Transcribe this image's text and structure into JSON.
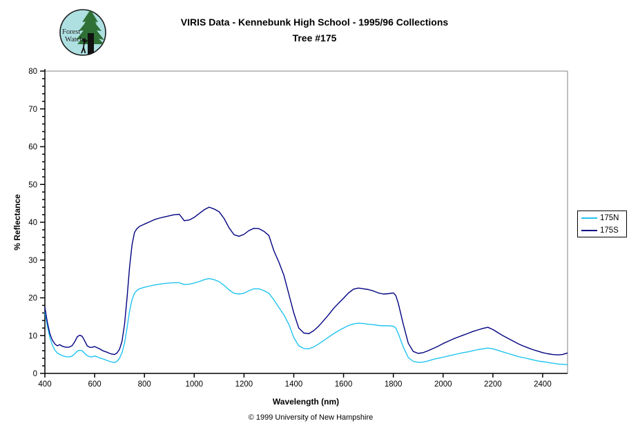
{
  "header": {
    "title_line1": "VIRIS Data - Kennebunk High School - 1995/96 Collections",
    "title_line2": "Tree #175"
  },
  "logo": {
    "text_line1": "Forest",
    "text_line2": "Watch",
    "bg_color": "#aee0e2",
    "tree_color": "#2f7036",
    "trunk_color": "#121212"
  },
  "footer": {
    "copyright": "© 1999 University of New Hampshire"
  },
  "chart_data": {
    "type": "line",
    "title": "VIRIS Data - Kennebunk High School - 1995/96 Collections — Tree #175",
    "xlabel": "Wavelength (nm)",
    "ylabel": "% Reflectance",
    "xlim": [
      400,
      2500
    ],
    "ylim": [
      0,
      80
    ],
    "x_ticks": [
      400,
      600,
      800,
      1000,
      1200,
      1400,
      1600,
      1800,
      2000,
      2200,
      2400
    ],
    "y_ticks": [
      0,
      10,
      20,
      30,
      40,
      50,
      60,
      70,
      80
    ],
    "y_minor_step": 2,
    "grid": false,
    "legend_position": "right-outside",
    "axis_color": "#000000",
    "plot_border_color": "#808080",
    "x": [
      400,
      410,
      420,
      430,
      440,
      450,
      460,
      470,
      480,
      490,
      500,
      510,
      520,
      530,
      540,
      550,
      560,
      570,
      580,
      590,
      600,
      610,
      620,
      630,
      640,
      650,
      660,
      670,
      680,
      690,
      700,
      710,
      720,
      730,
      740,
      750,
      760,
      770,
      780,
      790,
      800,
      820,
      840,
      860,
      880,
      900,
      920,
      940,
      960,
      980,
      1000,
      1020,
      1040,
      1060,
      1080,
      1100,
      1120,
      1140,
      1160,
      1180,
      1200,
      1220,
      1240,
      1260,
      1280,
      1300,
      1320,
      1340,
      1360,
      1380,
      1400,
      1420,
      1440,
      1460,
      1480,
      1500,
      1520,
      1540,
      1560,
      1580,
      1600,
      1620,
      1640,
      1660,
      1680,
      1700,
      1720,
      1740,
      1760,
      1780,
      1800,
      1810,
      1820,
      1840,
      1860,
      1880,
      1900,
      1920,
      1940,
      1960,
      1980,
      2000,
      2020,
      2040,
      2060,
      2080,
      2100,
      2120,
      2140,
      2160,
      2180,
      2200,
      2220,
      2240,
      2260,
      2280,
      2300,
      2320,
      2340,
      2360,
      2380,
      2400,
      2420,
      2440,
      2460,
      2480,
      2500
    ],
    "series": [
      {
        "name": "175N",
        "color": "#1fc3f0",
        "values": [
          16.3,
          12.5,
          9.5,
          7.5,
          6.2,
          5.4,
          5.0,
          4.7,
          4.5,
          4.4,
          4.4,
          4.6,
          5.2,
          5.9,
          6.1,
          6.0,
          5.3,
          4.7,
          4.4,
          4.4,
          4.6,
          4.4,
          4.1,
          3.9,
          3.7,
          3.4,
          3.2,
          3.0,
          2.9,
          3.2,
          4.0,
          5.5,
          8.0,
          12.0,
          16.5,
          19.5,
          21.2,
          22.0,
          22.4,
          22.6,
          22.8,
          23.1,
          23.4,
          23.6,
          23.8,
          23.9,
          24.0,
          24.0,
          23.5,
          23.6,
          23.9,
          24.3,
          24.8,
          25.1,
          24.8,
          24.3,
          23.3,
          22.1,
          21.2,
          21.0,
          21.2,
          21.9,
          22.4,
          22.4,
          21.9,
          21.2,
          19.5,
          17.5,
          15.5,
          13.0,
          9.5,
          7.3,
          6.6,
          6.5,
          7.0,
          7.8,
          8.7,
          9.6,
          10.5,
          11.3,
          12.0,
          12.7,
          13.1,
          13.3,
          13.2,
          13.0,
          12.9,
          12.7,
          12.6,
          12.6,
          12.5,
          12.0,
          10.5,
          7.0,
          4.2,
          3.2,
          2.9,
          3.0,
          3.3,
          3.7,
          4.0,
          4.3,
          4.6,
          4.9,
          5.2,
          5.5,
          5.7,
          6.0,
          6.3,
          6.5,
          6.7,
          6.5,
          6.1,
          5.7,
          5.3,
          4.9,
          4.5,
          4.2,
          3.9,
          3.6,
          3.3,
          3.1,
          2.9,
          2.7,
          2.5,
          2.4,
          2.3
        ]
      },
      {
        "name": "175S",
        "color": "#000080",
        "values": [
          17.5,
          13.5,
          10.5,
          8.8,
          7.8,
          7.3,
          7.6,
          7.2,
          7.0,
          6.9,
          7.0,
          7.4,
          8.4,
          9.7,
          10.1,
          9.8,
          8.6,
          7.3,
          6.9,
          6.9,
          7.1,
          6.8,
          6.5,
          6.1,
          5.8,
          5.6,
          5.3,
          5.1,
          5.0,
          5.4,
          6.4,
          8.5,
          13.0,
          20.0,
          28.0,
          34.0,
          37.3,
          38.3,
          38.9,
          39.2,
          39.5,
          40.1,
          40.7,
          41.1,
          41.4,
          41.7,
          42.0,
          42.1,
          40.4,
          40.6,
          41.3,
          42.3,
          43.3,
          44.0,
          43.5,
          42.8,
          41.0,
          38.5,
          36.7,
          36.3,
          36.8,
          37.8,
          38.4,
          38.3,
          37.6,
          36.5,
          32.5,
          29.5,
          26.0,
          21.0,
          16.0,
          12.0,
          10.7,
          10.5,
          11.3,
          12.5,
          14.0,
          15.5,
          17.2,
          18.6,
          19.9,
          21.3,
          22.3,
          22.6,
          22.4,
          22.2,
          21.8,
          21.3,
          21.0,
          21.1,
          21.3,
          20.6,
          18.5,
          13.0,
          8.0,
          5.8,
          5.3,
          5.5,
          6.0,
          6.6,
          7.2,
          7.9,
          8.5,
          9.1,
          9.6,
          10.1,
          10.6,
          11.1,
          11.5,
          11.9,
          12.2,
          11.6,
          10.8,
          10.0,
          9.3,
          8.6,
          7.9,
          7.3,
          6.8,
          6.3,
          5.9,
          5.5,
          5.2,
          5.0,
          4.9,
          5.0,
          5.4
        ]
      }
    ]
  }
}
